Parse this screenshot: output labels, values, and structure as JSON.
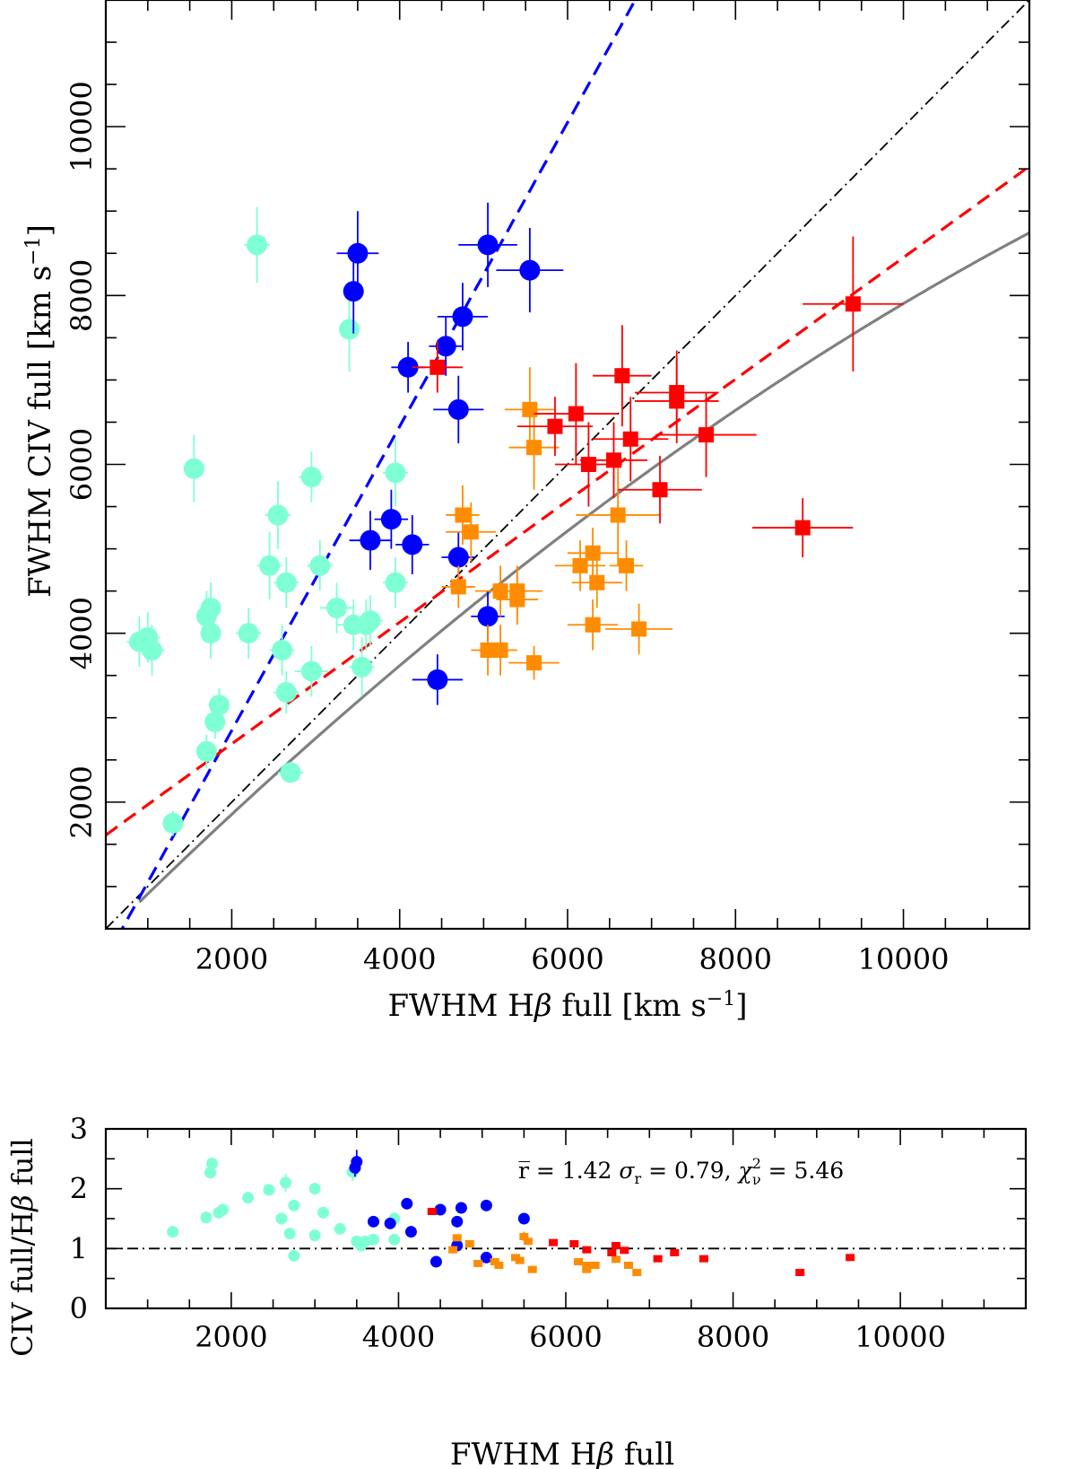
{
  "chart_data": [
    {
      "type": "scatter",
      "panel": "main",
      "xlabel": "FWHM Hβ full [km s⁻¹]",
      "ylabel": "FWHM CIV full [km s⁻¹]",
      "xlim": [
        500,
        11500
      ],
      "ylim": [
        500,
        11500
      ],
      "xticks": [
        "2000",
        "4000",
        "6000",
        "8000",
        "10000"
      ],
      "yticks": [
        "2000",
        "4000",
        "6000",
        "8000",
        "10000"
      ],
      "series": [
        {
          "name": "cyan",
          "color": "#7fffd4",
          "marker": "circle",
          "points": [
            [
              900,
              3900,
              150,
              300
            ],
            [
              1000,
              3950,
              150,
              300
            ],
            [
              1050,
              3800,
              150,
              300
            ],
            [
              1300,
              1750,
              100,
              150
            ],
            [
              1550,
              5950,
              120,
              400
            ],
            [
              1700,
              2600,
              100,
              200
            ],
            [
              1700,
              4200,
              100,
              300
            ],
            [
              1750,
              4000,
              120,
              300
            ],
            [
              1750,
              4300,
              100,
              300
            ],
            [
              1800,
              2950,
              100,
              200
            ],
            [
              1850,
              3150,
              100,
              200
            ],
            [
              2200,
              4000,
              150,
              300
            ],
            [
              2300,
              8600,
              150,
              450
            ],
            [
              2450,
              4800,
              150,
              400
            ],
            [
              2550,
              5400,
              150,
              400
            ],
            [
              2600,
              3800,
              150,
              300
            ],
            [
              2650,
              4600,
              150,
              300
            ],
            [
              2700,
              2350,
              150,
              100
            ],
            [
              2650,
              3300,
              150,
              250
            ],
            [
              2950,
              5850,
              150,
              300
            ],
            [
              2950,
              3550,
              200,
              300
            ],
            [
              3050,
              4800,
              150,
              300
            ],
            [
              3250,
              4300,
              200,
              300
            ],
            [
              3400,
              7600,
              100,
              500
            ],
            [
              3450,
              4100,
              200,
              300
            ],
            [
              3550,
              3600,
              150,
              350
            ],
            [
              3600,
              4100,
              150,
              300
            ],
            [
              3650,
              4150,
              150,
              300
            ],
            [
              3950,
              5900,
              150,
              400
            ],
            [
              3950,
              4600,
              150,
              300
            ]
          ]
        },
        {
          "name": "blue",
          "color": "#0000ff",
          "marker": "circle",
          "points": [
            [
              3450,
              8050,
              100,
              500
            ],
            [
              3500,
              8500,
              250,
              500
            ],
            [
              3650,
              5100,
              250,
              350
            ],
            [
              3900,
              5350,
              200,
              350
            ],
            [
              4100,
              7150,
              200,
              300
            ],
            [
              4150,
              5050,
              200,
              350
            ],
            [
              4450,
              3450,
              300,
              300
            ],
            [
              4550,
              7400,
              200,
              350
            ],
            [
              4700,
              6650,
              300,
              400
            ],
            [
              4700,
              4900,
              200,
              300
            ],
            [
              4750,
              7750,
              300,
              400
            ],
            [
              5050,
              8600,
              350,
              500
            ],
            [
              5050,
              4200,
              200,
              300
            ],
            [
              5550,
              8300,
              400,
              500
            ]
          ]
        },
        {
          "name": "orange",
          "color": "#ff8c00",
          "marker": "square",
          "points": [
            [
              4700,
              4550,
              200,
              250
            ],
            [
              4750,
              5400,
              200,
              350
            ],
            [
              4850,
              5200,
              300,
              350
            ],
            [
              5050,
              3800,
              200,
              300
            ],
            [
              5200,
              4500,
              300,
              300
            ],
            [
              5200,
              3800,
              200,
              300
            ],
            [
              5400,
              4500,
              300,
              300
            ],
            [
              5400,
              4400,
              250,
              300
            ],
            [
              5600,
              3650,
              300,
              200
            ],
            [
              5550,
              6650,
              300,
              500
            ],
            [
              5600,
              6200,
              300,
              500
            ],
            [
              6150,
              4800,
              300,
              300
            ],
            [
              6300,
              4950,
              300,
              300
            ],
            [
              6300,
              4100,
              300,
              300
            ],
            [
              6350,
              4600,
              300,
              300
            ],
            [
              6600,
              5400,
              500,
              600
            ],
            [
              6700,
              4800,
              200,
              300
            ],
            [
              6850,
              4050,
              400,
              300
            ]
          ]
        },
        {
          "name": "red",
          "color": "#ff0000",
          "marker": "square",
          "points": [
            [
              4450,
              7150,
              300,
              300
            ],
            [
              5850,
              6450,
              450,
              350
            ],
            [
              6100,
              6600,
              500,
              600
            ],
            [
              6250,
              6000,
              400,
              500
            ],
            [
              6550,
              6050,
              400,
              450
            ],
            [
              6650,
              7050,
              350,
              600
            ],
            [
              6750,
              6300,
              450,
              500
            ],
            [
              7100,
              5700,
              500,
              400
            ],
            [
              7300,
              6750,
              500,
              500
            ],
            [
              7300,
              6850,
              500,
              500
            ],
            [
              7650,
              6350,
              600,
              500
            ],
            [
              8800,
              5250,
              600,
              350
            ],
            [
              9400,
              7900,
              600,
              800
            ]
          ]
        }
      ],
      "lines": [
        {
          "name": "one-to-one",
          "color": "#000000",
          "style": "dash-dot",
          "slope": 1.0,
          "intercept": 0
        },
        {
          "name": "blue-fit",
          "color": "#0000ff",
          "style": "dashed",
          "slope": 1.8,
          "intercept": -750
        },
        {
          "name": "red-fit",
          "color": "#ff0000",
          "style": "dashed",
          "slope": 0.72,
          "intercept": 1250
        },
        {
          "name": "gray-fit",
          "color": "#808080",
          "style": "solid",
          "coeffs": [
            -70.7,
            1.0045,
            -2.07e-05
          ]
        }
      ]
    },
    {
      "type": "scatter",
      "panel": "ratio",
      "xlabel": "FWHM Hβ full",
      "ylabel": "CIV full/Hβ full",
      "xlim": [
        500,
        11500
      ],
      "ylim": [
        0,
        3
      ],
      "xticks": [
        "2000",
        "4000",
        "6000",
        "8000",
        "10000"
      ],
      "yticks": [
        "0",
        "1",
        "2",
        "3"
      ],
      "reference_line": 1,
      "annotation": {
        "prefix": "r̅ = 1.42  ",
        "sigma": "σ",
        "sigma_sub": "r",
        "mid": " = 0.79,  ",
        "chi": "χ",
        "chi_sup": "2",
        "chi_sub": "ν",
        "suffix": " = 5.46"
      },
      "series": [
        {
          "name": "cyan",
          "color": "#7fffd4",
          "marker": "circle",
          "points": [
            [
              1300,
              1.28,
              0.06
            ],
            [
              1700,
              1.52,
              0.06
            ],
            [
              1750,
              2.27,
              0.1
            ],
            [
              1770,
              2.42,
              0.08
            ],
            [
              1850,
              1.6,
              0.06
            ],
            [
              1900,
              1.65,
              0.06
            ],
            [
              2200,
              1.85,
              0.1
            ],
            [
              2450,
              1.98,
              0.1
            ],
            [
              2600,
              1.5,
              0.08
            ],
            [
              2650,
              2.1,
              0.15
            ],
            [
              2700,
              1.25,
              0.06
            ],
            [
              2750,
              1.72,
              0.08
            ],
            [
              2750,
              0.88,
              0.05
            ],
            [
              3000,
              2.0,
              0.1
            ],
            [
              3000,
              1.22,
              0.06
            ],
            [
              3100,
              1.6,
              0.08
            ],
            [
              3300,
              1.33,
              0.06
            ],
            [
              3450,
              2.28,
              0.15
            ],
            [
              3500,
              1.12,
              0.05
            ],
            [
              3550,
              1.05,
              0.05
            ],
            [
              3600,
              1.12,
              0.05
            ],
            [
              3700,
              1.15,
              0.05
            ],
            [
              3950,
              1.5,
              0.1
            ],
            [
              3950,
              1.15,
              0.05
            ]
          ]
        },
        {
          "name": "blue",
          "color": "#0000ff",
          "marker": "circle",
          "points": [
            [
              3480,
              2.35,
              0.15
            ],
            [
              3500,
              2.45,
              0.2
            ],
            [
              3700,
              1.45,
              0.06
            ],
            [
              3900,
              1.42,
              0.06
            ],
            [
              4100,
              1.75,
              0.06
            ],
            [
              4150,
              1.28,
              0.06
            ],
            [
              4450,
              0.78,
              0.05
            ],
            [
              4500,
              1.65,
              0.06
            ],
            [
              4700,
              1.45,
              0.06
            ],
            [
              4700,
              1.05,
              0.05
            ],
            [
              4750,
              1.68,
              0.06
            ],
            [
              5050,
              1.72,
              0.06
            ],
            [
              5050,
              0.85,
              0.05
            ],
            [
              5500,
              1.5,
              0.07
            ]
          ]
        },
        {
          "name": "orange",
          "color": "#ff8c00",
          "marker": "square",
          "points": [
            [
              4650,
              0.98,
              0.06
            ],
            [
              4700,
              1.18,
              0.06
            ],
            [
              4850,
              1.08,
              0.06
            ],
            [
              4950,
              0.75,
              0.04
            ],
            [
              5150,
              0.78,
              0.04
            ],
            [
              5200,
              0.72,
              0.04
            ],
            [
              5400,
              0.85,
              0.04
            ],
            [
              5450,
              0.8,
              0.04
            ],
            [
              5500,
              1.2,
              0.08
            ],
            [
              5550,
              1.12,
              0.06
            ],
            [
              5600,
              0.65,
              0.04
            ],
            [
              6150,
              0.78,
              0.04
            ],
            [
              6250,
              0.72,
              0.04
            ],
            [
              6250,
              0.65,
              0.04
            ],
            [
              6350,
              0.72,
              0.04
            ],
            [
              6600,
              0.82,
              0.05
            ],
            [
              6750,
              0.72,
              0.04
            ],
            [
              6850,
              0.6,
              0.04
            ]
          ]
        },
        {
          "name": "red",
          "color": "#ff0000",
          "marker": "square",
          "points": [
            [
              4400,
              1.62,
              0.06
            ],
            [
              5850,
              1.1,
              0.05
            ],
            [
              6100,
              1.08,
              0.05
            ],
            [
              6250,
              0.98,
              0.05
            ],
            [
              6550,
              0.93,
              0.05
            ],
            [
              6600,
              1.05,
              0.05
            ],
            [
              6700,
              0.97,
              0.05
            ],
            [
              7100,
              0.83,
              0.04
            ],
            [
              7300,
              0.93,
              0.05
            ],
            [
              7650,
              0.83,
              0.04
            ],
            [
              8800,
              0.6,
              0.04
            ],
            [
              9400,
              0.85,
              0.05
            ]
          ]
        }
      ]
    }
  ]
}
